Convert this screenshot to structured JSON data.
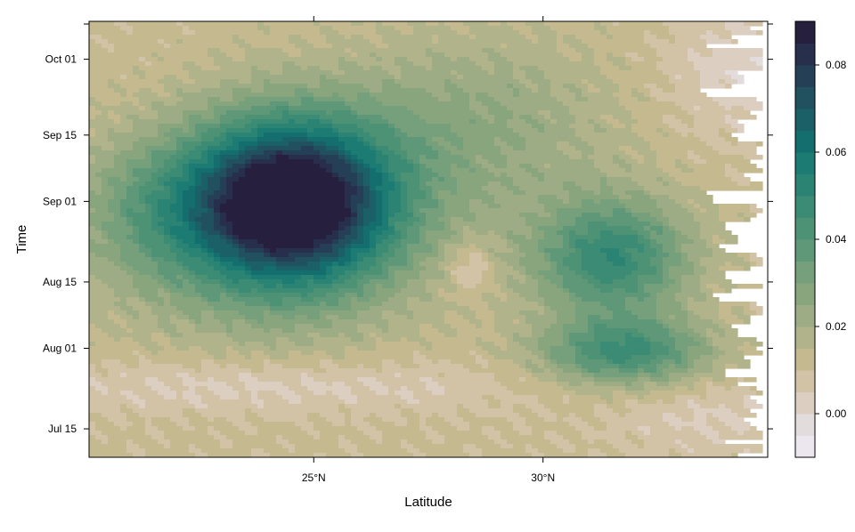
{
  "chart_data": {
    "type": "heatmap",
    "title": "",
    "xlabel": "Latitude",
    "ylabel": "Time",
    "x_ticks": [
      {
        "value": 25,
        "label": "25°N"
      },
      {
        "value": 30,
        "label": "30°N"
      }
    ],
    "y_ticks": [
      {
        "value": "2014-07-15",
        "label": "Jul 15"
      },
      {
        "value": "2014-08-01",
        "label": "Aug 01"
      },
      {
        "value": "2014-08-15",
        "label": "Aug 15"
      },
      {
        "value": "2014-09-01",
        "label": "Sep 01"
      },
      {
        "value": "2014-09-15",
        "label": "Sep 15"
      },
      {
        "value": "2014-10-01",
        "label": "Oct 01"
      }
    ],
    "xlim": [
      20.1,
      34.9
    ],
    "ylim": [
      "2014-07-09",
      "2014-10-09"
    ],
    "colorbar": {
      "range": [
        -0.01,
        0.09
      ],
      "ticks": [
        0.0,
        0.02,
        0.04,
        0.06,
        0.08
      ],
      "tick_labels": [
        "0.00",
        "0.02",
        "0.04",
        "0.06",
        "0.08"
      ],
      "levels": [
        -0.01,
        -0.005,
        0.0,
        0.005,
        0.01,
        0.015,
        0.02,
        0.025,
        0.03,
        0.035,
        0.04,
        0.045,
        0.05,
        0.055,
        0.06,
        0.065,
        0.07,
        0.075,
        0.08,
        0.085,
        0.09
      ],
      "colors": [
        "#ece7ef",
        "#e2dcdc",
        "#dccfc2",
        "#d3c3a6",
        "#c4b98f",
        "#b1b38a",
        "#9dac84",
        "#89a57e",
        "#75a07b",
        "#5f9878",
        "#4e9276",
        "#3c8b74",
        "#2b8373",
        "#1c7b72",
        "#156e6e",
        "#1b5f67",
        "#21505f",
        "#243f56",
        "#272f4c",
        "#261f3d"
      ]
    },
    "features": [
      {
        "name": "main-maximum",
        "lat": 24.5,
        "date": "2014-09-01",
        "value": 0.088
      },
      {
        "name": "secondary-maximum",
        "lat": 31.5,
        "date": "2014-08-20",
        "value": 0.048
      },
      {
        "name": "secondary-band",
        "lat": 31.8,
        "date": "2014-07-31",
        "value": 0.042
      }
    ]
  }
}
